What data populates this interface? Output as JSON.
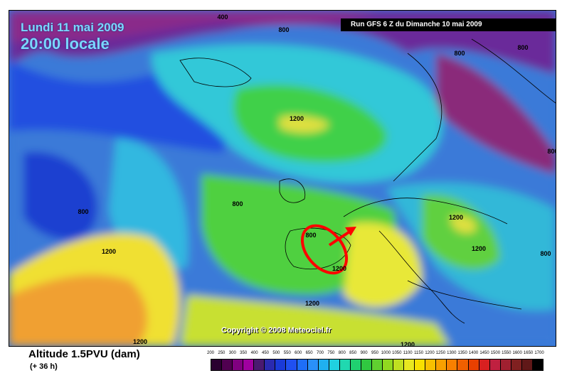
{
  "header": {
    "date": "Lundi 11 mai 2009",
    "time": "20:00 locale",
    "run": "Run GFS 6 Z du Dimanche 10 mai 2009"
  },
  "map": {
    "copyright": "Copyright © 2008 Meteociel.fr",
    "contour_labels": [
      "400",
      "800",
      "800",
      "800",
      "800",
      "800",
      "800",
      "1200",
      "1200",
      "1200",
      "1200",
      "1200",
      "1200",
      "1200",
      "1200",
      "800",
      "800"
    ],
    "highlight": "red-ellipse-with-arrow",
    "colors": {
      "ocean_low": "#3a7ad8",
      "purple_high": "#8a2a8a",
      "green": "#40d04a",
      "yellow": "#f0f040",
      "orange": "#f0a030",
      "cyan": "#30d0d0",
      "highlight": "#ff0000"
    }
  },
  "footer": {
    "title": "Altitude 1.5PVU (dam)",
    "forecast": "(+ 36 h)"
  },
  "scale": {
    "labels": [
      "200",
      "250",
      "300",
      "350",
      "400",
      "450",
      "500",
      "550",
      "600",
      "650",
      "700",
      "750",
      "800",
      "850",
      "900",
      "950",
      "1000",
      "1050",
      "1100",
      "1150",
      "1200",
      "1250",
      "1300",
      "1350",
      "1400",
      "1450",
      "1500",
      "1550",
      "1600",
      "1650",
      "1700"
    ],
    "colors": [
      "#2a0030",
      "#500050",
      "#800080",
      "#a000a0",
      "#4a1a70",
      "#2a2ab0",
      "#1a3ad8",
      "#2050f0",
      "#1e6ef8",
      "#2a90f8",
      "#20b0f0",
      "#20d0e0",
      "#20d8b0",
      "#20d070",
      "#30c840",
      "#60d030",
      "#90d820",
      "#c0e020",
      "#e8e820",
      "#f8e000",
      "#f8c000",
      "#f8a000",
      "#f88000",
      "#f06000",
      "#e84000",
      "#d82020",
      "#c02040",
      "#a02030",
      "#802020",
      "#601818",
      "#000000"
    ]
  }
}
